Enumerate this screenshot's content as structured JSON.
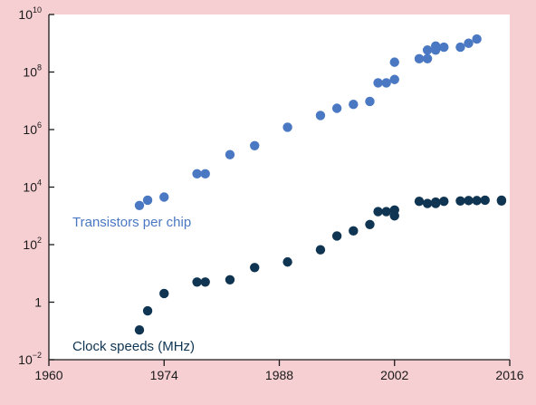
{
  "colors": {
    "background": "#f6cfd3",
    "plot_area": "#ffffff",
    "axis": "#1a1a1a",
    "transistors": "#4a78c2",
    "clock": "#0f3553"
  },
  "chart_data": {
    "type": "scatter",
    "x_scale": "linear",
    "y_scale": "log",
    "xlim": [
      1960,
      2016
    ],
    "ylim_log10": [
      -2,
      10
    ],
    "x_ticks": [
      {
        "value": 1960,
        "label": "1960"
      },
      {
        "value": 1974,
        "label": "1974"
      },
      {
        "value": 1988,
        "label": "1988"
      },
      {
        "value": 2002,
        "label": "2002"
      },
      {
        "value": 2016,
        "label": "2016"
      }
    ],
    "y_ticks": [
      {
        "log10": -2,
        "base": "10",
        "exp": "−2"
      },
      {
        "log10": 0,
        "base": "1",
        "exp": ""
      },
      {
        "log10": 2,
        "base": "10",
        "exp": "2"
      },
      {
        "log10": 4,
        "base": "10",
        "exp": "4"
      },
      {
        "log10": 6,
        "base": "10",
        "exp": "6"
      },
      {
        "log10": 8,
        "base": "10",
        "exp": "8"
      },
      {
        "log10": 10,
        "base": "10",
        "exp": "10"
      }
    ],
    "series": [
      {
        "name": "Transistors per chip",
        "color": "#4a78c2",
        "points": [
          {
            "x": 1971,
            "y": 2300
          },
          {
            "x": 1972,
            "y": 3500
          },
          {
            "x": 1974,
            "y": 4500
          },
          {
            "x": 1978,
            "y": 29000
          },
          {
            "x": 1979,
            "y": 29000
          },
          {
            "x": 1982,
            "y": 134000
          },
          {
            "x": 1985,
            "y": 275000
          },
          {
            "x": 1989,
            "y": 1200000
          },
          {
            "x": 1993,
            "y": 3100000
          },
          {
            "x": 1995,
            "y": 5500000
          },
          {
            "x": 1997,
            "y": 7500000
          },
          {
            "x": 1999,
            "y": 9500000
          },
          {
            "x": 2000,
            "y": 42000000
          },
          {
            "x": 2001,
            "y": 42000000
          },
          {
            "x": 2002,
            "y": 55000000
          },
          {
            "x": 2002,
            "y": 220000000
          },
          {
            "x": 2005,
            "y": 290000000
          },
          {
            "x": 2006,
            "y": 291000000
          },
          {
            "x": 2006,
            "y": 580000000
          },
          {
            "x": 2007,
            "y": 580000000
          },
          {
            "x": 2007,
            "y": 800000000
          },
          {
            "x": 2008,
            "y": 731000000
          },
          {
            "x": 2010,
            "y": 731000000
          },
          {
            "x": 2011,
            "y": 1000000000
          },
          {
            "x": 2012,
            "y": 1400000000
          }
        ]
      },
      {
        "name": "Clock speeds (MHz)",
        "color": "#0f3553",
        "points": [
          {
            "x": 1971,
            "y": 0.108
          },
          {
            "x": 1972,
            "y": 0.5
          },
          {
            "x": 1974,
            "y": 2
          },
          {
            "x": 1978,
            "y": 5
          },
          {
            "x": 1979,
            "y": 5
          },
          {
            "x": 1982,
            "y": 6
          },
          {
            "x": 1985,
            "y": 16
          },
          {
            "x": 1989,
            "y": 25
          },
          {
            "x": 1993,
            "y": 66
          },
          {
            "x": 1995,
            "y": 200
          },
          {
            "x": 1997,
            "y": 300
          },
          {
            "x": 1999,
            "y": 500
          },
          {
            "x": 2000,
            "y": 1400
          },
          {
            "x": 2001,
            "y": 1400
          },
          {
            "x": 2002,
            "y": 1600
          },
          {
            "x": 2002,
            "y": 1000
          },
          {
            "x": 2005,
            "y": 3200
          },
          {
            "x": 2006,
            "y": 2700
          },
          {
            "x": 2007,
            "y": 3000
          },
          {
            "x": 2007,
            "y": 2700
          },
          {
            "x": 2008,
            "y": 3200
          },
          {
            "x": 2010,
            "y": 3300
          },
          {
            "x": 2011,
            "y": 3400
          },
          {
            "x": 2012,
            "y": 3400
          },
          {
            "x": 2013,
            "y": 3500
          },
          {
            "x": 2015,
            "y": 3500
          },
          {
            "x": 2015,
            "y": 3300
          }
        ]
      }
    ]
  }
}
